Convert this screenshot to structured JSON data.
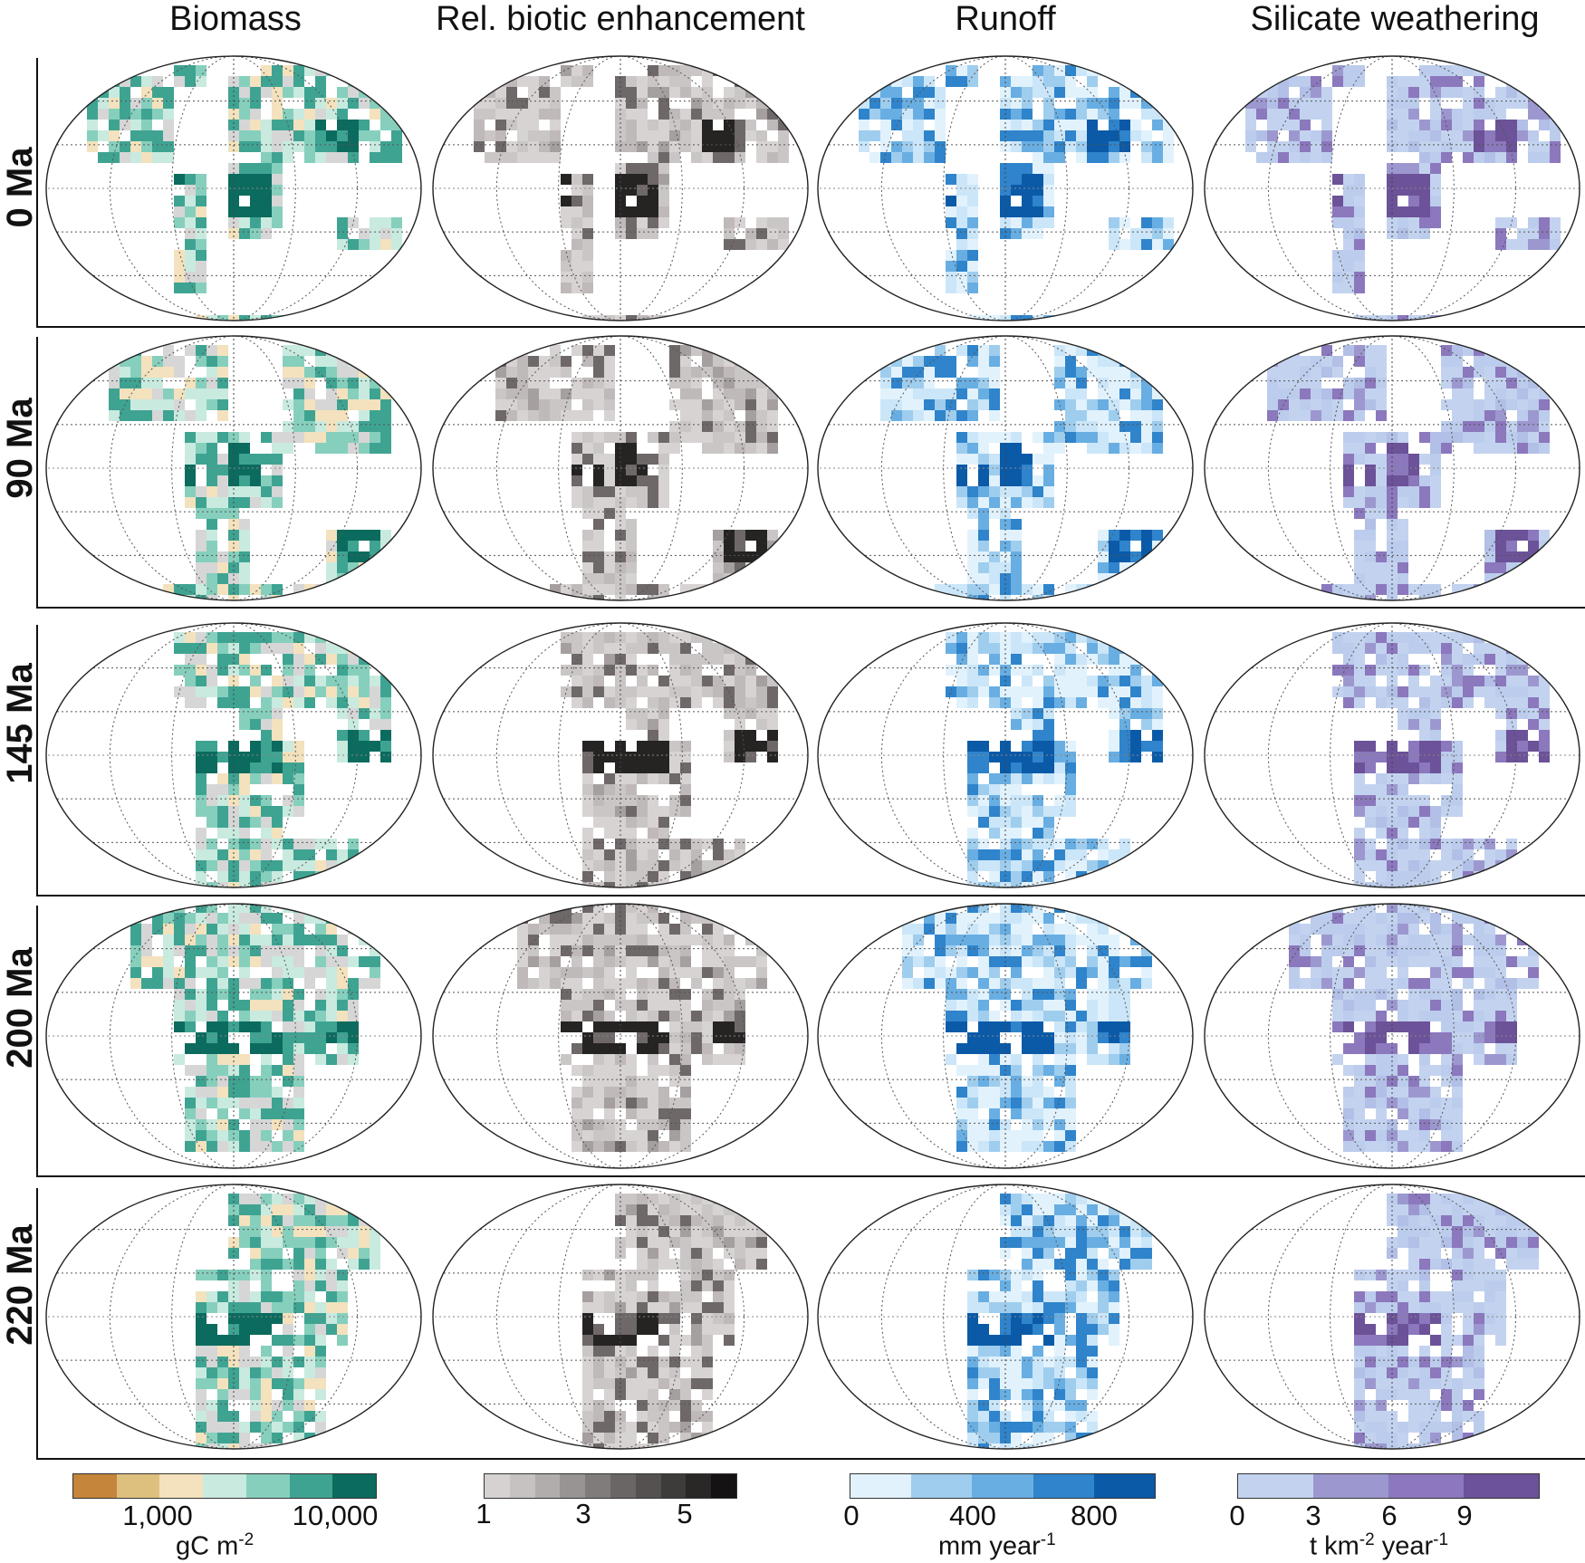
{
  "columns": [
    {
      "title": "Biomass",
      "palette": [
        "#d6d6d6",
        "#f3e2bd",
        "#c9eadf",
        "#86cfbd",
        "#3fa392",
        "#0b6b5e"
      ],
      "weights": [
        3,
        2,
        3,
        3,
        2,
        2
      ],
      "hot_color": "#0b6b5e"
    },
    {
      "title": "Rel. biotic enhancement",
      "palette": [
        "#d8d3d3",
        "#cbc6c6",
        "#bfb9b9",
        "#a59f9f",
        "#6e6868",
        "#2e2a2a"
      ],
      "weights": [
        5,
        4,
        2,
        1,
        1,
        1
      ],
      "hot_color": "#262323"
    },
    {
      "title": "Runoff",
      "palette": [
        "#e1f2fc",
        "#cbe6f8",
        "#9fcdee",
        "#68aee2",
        "#2f84cb",
        "#0b5aa8"
      ],
      "weights": [
        4,
        3,
        2,
        2,
        1,
        1
      ],
      "hot_color": "#0b5aa8"
    },
    {
      "title": "Silicate weathering",
      "palette": [
        "#c3d3ef",
        "#bcccec",
        "#b2bfe6",
        "#9c98cf",
        "#8b78bd",
        "#6c5298"
      ],
      "weights": [
        6,
        4,
        1,
        1,
        1,
        1
      ],
      "hot_color": "#6c5298"
    }
  ],
  "rows": [
    {
      "label": "0 Ma",
      "shape": "modern"
    },
    {
      "label": "90 Ma",
      "shape": "cretaceous"
    },
    {
      "label": "145 Ma",
      "shape": "jurassic"
    },
    {
      "label": "200 Ma",
      "shape": "pangea"
    },
    {
      "label": "220 Ma",
      "shape": "triassic"
    }
  ],
  "colorbars": [
    {
      "name": "biomass",
      "colors": [
        "#c5853a",
        "#dec07e",
        "#f3e2bd",
        "#c9eadf",
        "#86cfbd",
        "#3fa392",
        "#0b6b5e"
      ],
      "ticks": [
        "1,000",
        "10,000"
      ],
      "unit": "gC m",
      "unit_sup": "-2"
    },
    {
      "name": "enhancement",
      "colors": [
        "#d6d2d2",
        "#c6c2c2",
        "#b1adad",
        "#989494",
        "#807c7c",
        "#6a6666",
        "#555151",
        "#3e3b3b",
        "#2a2727",
        "#141212"
      ],
      "ticks": [
        "1",
        "3",
        "5"
      ],
      "unit": "",
      "unit_sup": ""
    },
    {
      "name": "runoff",
      "colors": [
        "#e1f2fc",
        "#9fcdee",
        "#68aee2",
        "#2f84cb",
        "#0b5aa8"
      ],
      "ticks": [
        "0",
        "400",
        "800"
      ],
      "unit": "mm year",
      "unit_sup": "-1"
    },
    {
      "name": "weathering",
      "colors": [
        "#c3d3ef",
        "#9c98cf",
        "#8b78bd",
        "#6c5298"
      ],
      "ticks": [
        "0",
        "3",
        "6",
        "9"
      ],
      "unit": "t km",
      "unit_sup": "-2",
      "unit2": " year",
      "unit2_sup": "-1"
    }
  ]
}
